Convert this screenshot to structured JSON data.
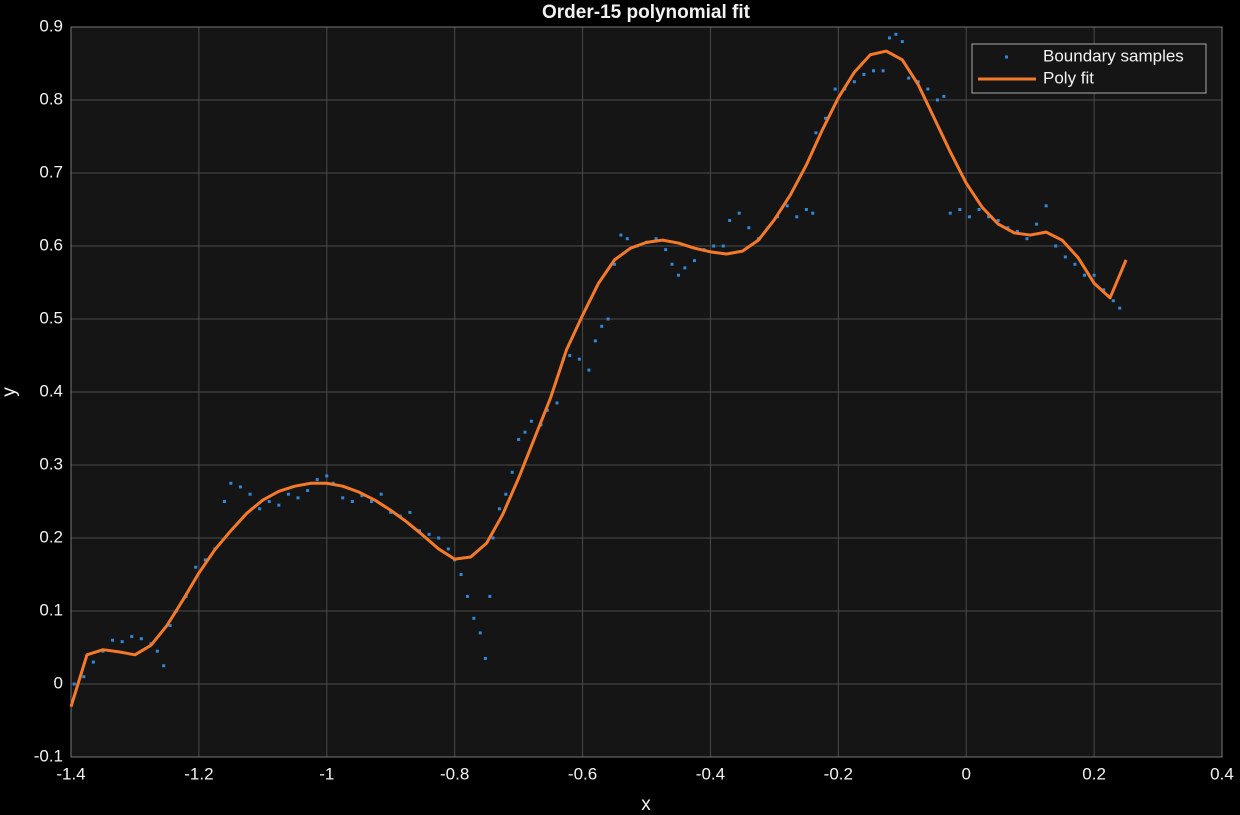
{
  "chart_data": {
    "type": "line",
    "title": "Order-15 polynomial fit",
    "xlabel": "x",
    "ylabel": "y",
    "xlim": [
      -1.4,
      0.4
    ],
    "ylim": [
      -0.1,
      0.9
    ],
    "xticks": [
      -1.4,
      -1.2,
      -1,
      -0.8,
      -0.6,
      -0.4,
      -0.2,
      0,
      0.2,
      0.4
    ],
    "yticks": [
      -0.1,
      0,
      0.1,
      0.2,
      0.3,
      0.4,
      0.5,
      0.6,
      0.7,
      0.8,
      0.9
    ],
    "grid": true,
    "legend": "upper right",
    "series": [
      {
        "name": "Boundary samples",
        "type": "scatter",
        "color": "#2f88dc",
        "x": [
          -1.395,
          -1.38,
          -1.365,
          -1.35,
          -1.335,
          -1.32,
          -1.305,
          -1.29,
          -1.275,
          -1.265,
          -1.255,
          -1.245,
          -1.235,
          -1.22,
          -1.205,
          -1.19,
          -1.175,
          -1.16,
          -1.15,
          -1.135,
          -1.12,
          -1.105,
          -1.09,
          -1.075,
          -1.06,
          -1.045,
          -1.03,
          -1.015,
          -1.0,
          -0.99,
          -0.975,
          -0.96,
          -0.945,
          -0.93,
          -0.915,
          -0.9,
          -0.885,
          -0.87,
          -0.855,
          -0.84,
          -0.825,
          -0.81,
          -0.8,
          -0.79,
          -0.78,
          -0.77,
          -0.76,
          -0.752,
          -0.745,
          -0.74,
          -0.73,
          -0.72,
          -0.71,
          -0.7,
          -0.69,
          -0.68,
          -0.665,
          -0.655,
          -0.64,
          -0.63,
          -0.62,
          -0.605,
          -0.59,
          -0.58,
          -0.57,
          -0.56,
          -0.55,
          -0.54,
          -0.53,
          -0.515,
          -0.5,
          -0.485,
          -0.47,
          -0.46,
          -0.45,
          -0.44,
          -0.425,
          -0.41,
          -0.395,
          -0.38,
          -0.37,
          -0.355,
          -0.34,
          -0.325,
          -0.31,
          -0.295,
          -0.28,
          -0.265,
          -0.25,
          -0.24,
          -0.235,
          -0.22,
          -0.205,
          -0.19,
          -0.175,
          -0.16,
          -0.145,
          -0.13,
          -0.12,
          -0.11,
          -0.1,
          -0.09,
          -0.075,
          -0.06,
          -0.045,
          -0.035,
          -0.025,
          -0.01,
          0.005,
          0.02,
          0.035,
          0.05,
          0.065,
          0.08,
          0.095,
          0.11,
          0.125,
          0.14,
          0.155,
          0.17,
          0.185,
          0.2,
          0.215,
          0.23,
          0.24
        ],
        "values": [
          0.0,
          0.01,
          0.03,
          0.045,
          0.06,
          0.058,
          0.065,
          0.062,
          0.055,
          0.045,
          0.025,
          0.08,
          0.1,
          0.12,
          0.16,
          0.17,
          0.185,
          0.25,
          0.275,
          0.27,
          0.26,
          0.24,
          0.25,
          0.245,
          0.26,
          0.255,
          0.265,
          0.28,
          0.285,
          0.275,
          0.255,
          0.25,
          0.258,
          0.25,
          0.26,
          0.235,
          0.23,
          0.235,
          0.21,
          0.205,
          0.2,
          0.185,
          0.17,
          0.15,
          0.12,
          0.09,
          0.07,
          0.035,
          0.12,
          0.2,
          0.24,
          0.26,
          0.29,
          0.335,
          0.345,
          0.36,
          0.355,
          0.375,
          0.385,
          0.445,
          0.45,
          0.445,
          0.43,
          0.47,
          0.49,
          0.5,
          0.575,
          0.615,
          0.61,
          0.6,
          0.605,
          0.61,
          0.595,
          0.575,
          0.56,
          0.57,
          0.58,
          0.595,
          0.6,
          0.6,
          0.635,
          0.645,
          0.625,
          0.61,
          0.625,
          0.64,
          0.655,
          0.64,
          0.65,
          0.645,
          0.755,
          0.775,
          0.815,
          0.815,
          0.825,
          0.835,
          0.84,
          0.84,
          0.885,
          0.89,
          0.88,
          0.83,
          0.825,
          0.815,
          0.8,
          0.805,
          0.645,
          0.65,
          0.64,
          0.65,
          0.64,
          0.635,
          0.625,
          0.62,
          0.61,
          0.63,
          0.655,
          0.6,
          0.585,
          0.575,
          0.56,
          0.56,
          0.54,
          0.525,
          0.515
        ]
      },
      {
        "name": "Poly fit",
        "type": "line",
        "color": "#f47a2a",
        "x": [
          -1.4,
          -1.375,
          -1.35,
          -1.325,
          -1.3,
          -1.275,
          -1.25,
          -1.225,
          -1.2,
          -1.175,
          -1.15,
          -1.125,
          -1.1,
          -1.075,
          -1.05,
          -1.025,
          -1.0,
          -0.975,
          -0.95,
          -0.925,
          -0.9,
          -0.875,
          -0.85,
          -0.825,
          -0.8,
          -0.775,
          -0.75,
          -0.725,
          -0.7,
          -0.675,
          -0.65,
          -0.625,
          -0.6,
          -0.575,
          -0.55,
          -0.525,
          -0.5,
          -0.475,
          -0.45,
          -0.425,
          -0.4,
          -0.375,
          -0.35,
          -0.325,
          -0.3,
          -0.275,
          -0.25,
          -0.225,
          -0.2,
          -0.175,
          -0.15,
          -0.125,
          -0.1,
          -0.075,
          -0.05,
          -0.025,
          0,
          0.025,
          0.05,
          0.075,
          0.1,
          0.125,
          0.15,
          0.175,
          0.2,
          0.225,
          0.25
        ],
        "values": [
          -0.031,
          0.04,
          0.047,
          0.044,
          0.04,
          0.053,
          0.08,
          0.115,
          0.152,
          0.184,
          0.21,
          0.234,
          0.252,
          0.264,
          0.271,
          0.275,
          0.275,
          0.271,
          0.263,
          0.252,
          0.238,
          0.222,
          0.204,
          0.185,
          0.171,
          0.174,
          0.193,
          0.232,
          0.282,
          0.337,
          0.392,
          0.458,
          0.505,
          0.549,
          0.581,
          0.597,
          0.605,
          0.608,
          0.604,
          0.597,
          0.592,
          0.589,
          0.593,
          0.608,
          0.636,
          0.67,
          0.711,
          0.759,
          0.803,
          0.838,
          0.862,
          0.867,
          0.855,
          0.821,
          0.775,
          0.729,
          0.686,
          0.653,
          0.63,
          0.618,
          0.615,
          0.619,
          0.608,
          0.584,
          0.549,
          0.529,
          0.581
        ]
      }
    ]
  }
}
